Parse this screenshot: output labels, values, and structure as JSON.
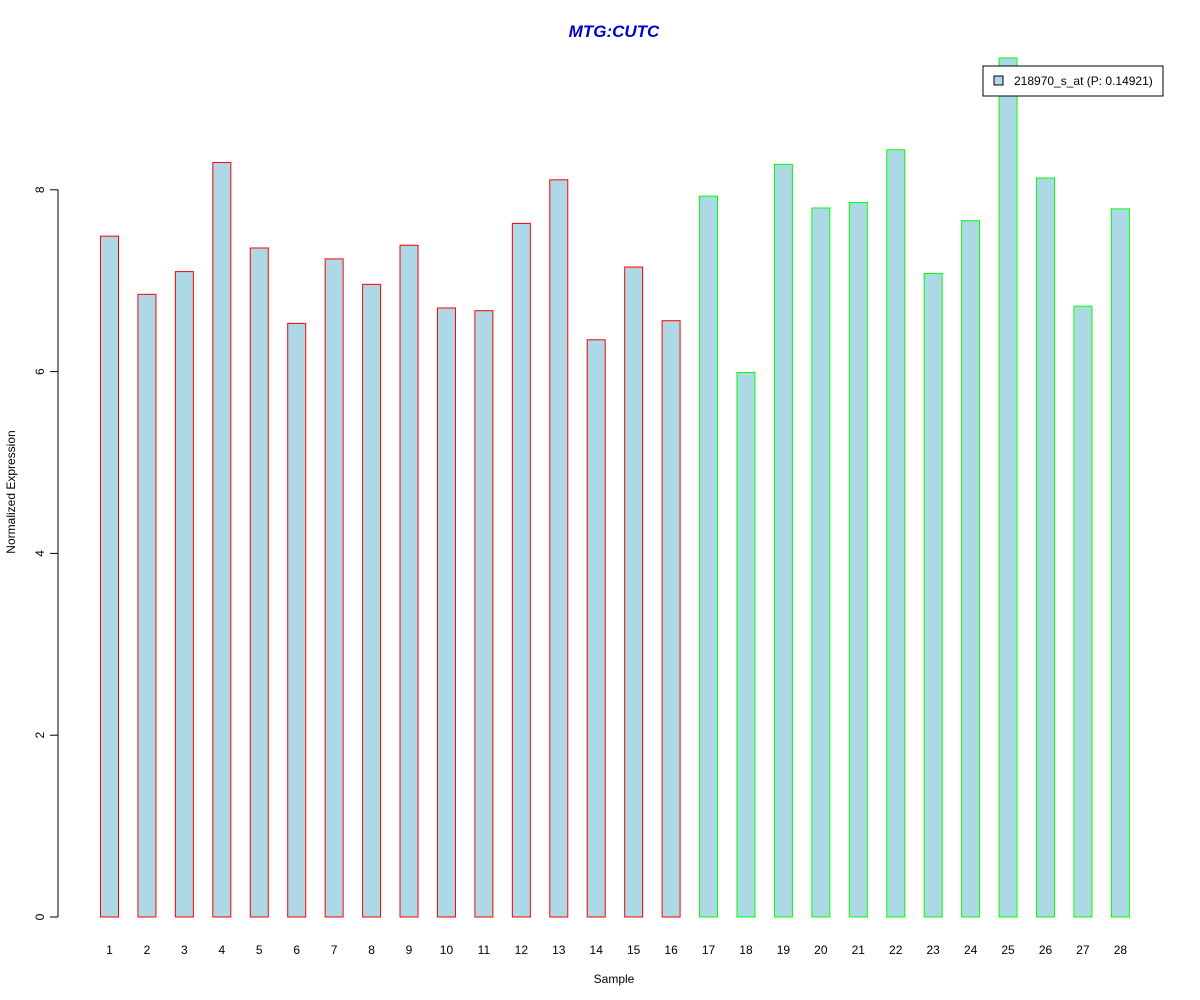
{
  "chart_data": {
    "type": "bar",
    "title": "MTG:CUTC",
    "title_color": "#0000CD",
    "xlabel": "Sample",
    "ylabel": "Normalized Expression",
    "ylim": [
      0,
      9.5
    ],
    "yticks": [
      0,
      2,
      4,
      6,
      8
    ],
    "grid": false,
    "legend": {
      "position": "top-right",
      "entries": [
        "218970_s_at (P: 0.14921)"
      ]
    },
    "bar_fill": "#ADD8E6",
    "group_colors": [
      "#FF0000",
      "#00FF00"
    ],
    "categories": [
      "1",
      "2",
      "3",
      "4",
      "5",
      "6",
      "7",
      "8",
      "9",
      "10",
      "11",
      "12",
      "13",
      "14",
      "15",
      "16",
      "17",
      "18",
      "19",
      "20",
      "21",
      "22",
      "23",
      "24",
      "25",
      "26",
      "27",
      "28"
    ],
    "groups": [
      0,
      0,
      0,
      0,
      0,
      0,
      0,
      0,
      0,
      0,
      0,
      0,
      0,
      0,
      0,
      0,
      1,
      1,
      1,
      1,
      1,
      1,
      1,
      1,
      1,
      1,
      1,
      1
    ],
    "series": [
      {
        "name": "218970_s_at (P: 0.14921)",
        "values": [
          7.49,
          6.85,
          7.1,
          8.3,
          7.36,
          6.53,
          7.24,
          6.96,
          7.39,
          6.7,
          6.67,
          7.63,
          8.11,
          6.35,
          7.15,
          6.56,
          7.93,
          5.99,
          8.28,
          7.8,
          7.86,
          8.44,
          7.08,
          7.66,
          9.45,
          8.13,
          6.72,
          7.79
        ]
      }
    ]
  }
}
